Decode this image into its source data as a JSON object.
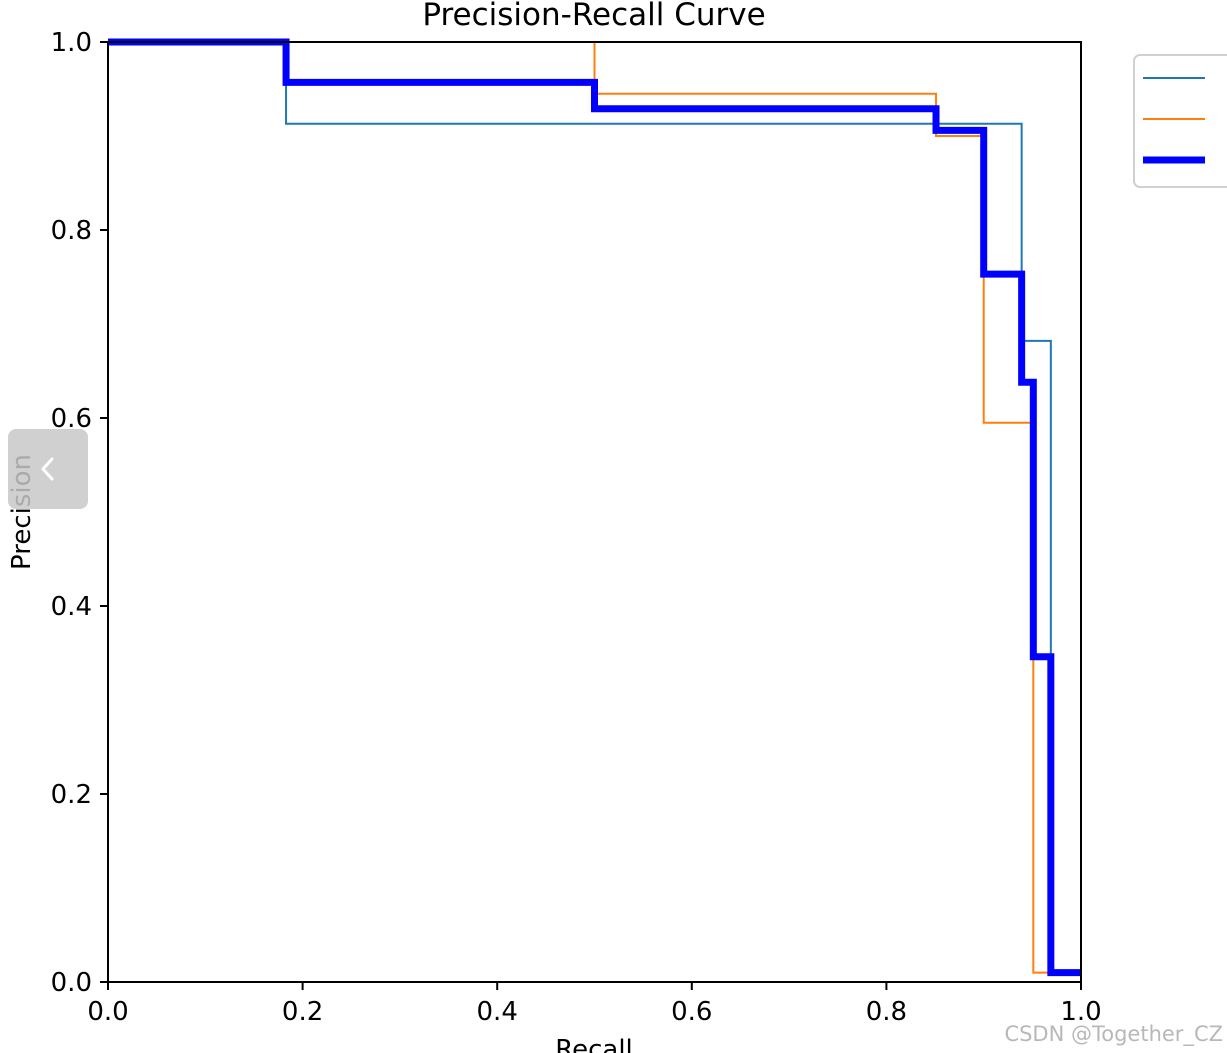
{
  "chart_data": {
    "type": "line",
    "title": "Precision-Recall Curve",
    "xlabel": "Recall",
    "ylabel": "Precision",
    "xlim": [
      0,
      1
    ],
    "ylim": [
      0,
      1
    ],
    "xticks": [
      "0.0",
      "0.2",
      "0.4",
      "0.6",
      "0.8",
      "1.0"
    ],
    "yticks": [
      "0.0",
      "0.2",
      "0.4",
      "0.6",
      "0.8",
      "1.0"
    ],
    "grid": false,
    "legend_position": "upper-right-outside",
    "series": [
      {
        "color": "#1f77b4",
        "width": 2,
        "step": "post",
        "x": [
          0.0,
          0.183,
          0.939,
          0.969,
          1.0
        ],
        "y": [
          1.0,
          0.913,
          0.682,
          0.01,
          0.01
        ]
      },
      {
        "color": "#ff7f0e",
        "width": 2,
        "step": "post",
        "x": [
          0.0,
          0.5,
          0.851,
          0.9,
          0.951,
          1.0
        ],
        "y": [
          1.0,
          0.945,
          0.9,
          0.595,
          0.01,
          0.01
        ]
      },
      {
        "color": "#0000ff",
        "width": 7,
        "step": "post",
        "x": [
          0.0,
          0.183,
          0.5,
          0.851,
          0.9,
          0.939,
          0.951,
          0.969,
          1.0
        ],
        "y": [
          1.0,
          0.957,
          0.929,
          0.906,
          0.753,
          0.638,
          0.346,
          0.01,
          0.01
        ]
      }
    ]
  },
  "watermark": "CSDN @Together_CZ"
}
